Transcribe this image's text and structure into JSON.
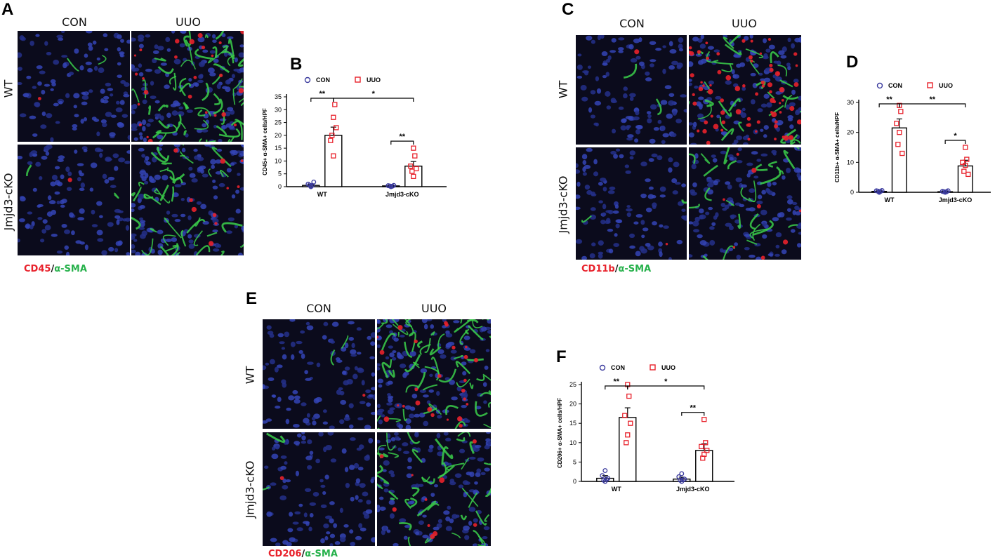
{
  "panels": {
    "A": {
      "label": "A",
      "columns": [
        "CON",
        "UUO"
      ],
      "rows": [
        "WT",
        "Jmjd3-cKO"
      ],
      "stain": {
        "red": "CD45",
        "sep": "/",
        "green": "α-SMA"
      }
    },
    "C": {
      "label": "C",
      "columns": [
        "CON",
        "UUO"
      ],
      "rows": [
        "WT",
        "Jmjd3-cKO"
      ],
      "stain": {
        "red": "CD11b",
        "sep": "/",
        "green": "α-SMA"
      }
    },
    "E": {
      "label": "E",
      "columns": [
        "CON",
        "UUO"
      ],
      "rows": [
        "WT",
        "Jmjd3-cKO"
      ],
      "stain": {
        "red": "CD206",
        "sep": "/",
        "green": "α-SMA"
      }
    },
    "B": {
      "label": "B"
    },
    "D": {
      "label": "D"
    },
    "F": {
      "label": "F"
    }
  },
  "colors": {
    "con": "#3b3b9e",
    "uuo": "#e8212b",
    "nuclei": "#2e3fa8",
    "actin": "#3bcf4a",
    "infiltrate": "#e8212b"
  },
  "chart_data": [
    {
      "panel": "B",
      "type": "bar",
      "categories": [
        "WT",
        "Jmjd3-cKO"
      ],
      "ylabel": "CD45+ α-SMA+ cells/HPF",
      "ylim": [
        0,
        35
      ],
      "yticks": [
        0,
        5,
        10,
        15,
        20,
        25,
        30,
        35
      ],
      "legend": [
        "CON",
        "UUO"
      ],
      "series": [
        {
          "name": "CON",
          "means": [
            0.5,
            0.3
          ],
          "sem": [
            0.4,
            0.2
          ],
          "points": [
            [
              0,
              0.5,
              1,
              0.3,
              0.6,
              1.8
            ],
            [
              0,
              0.2,
              0.4,
              0.1,
              0.3,
              0.5
            ]
          ]
        },
        {
          "name": "UUO",
          "means": [
            20,
            8
          ],
          "sem": [
            3.2,
            1.8
          ],
          "points": [
            [
              27,
              32,
              18,
              12,
              20,
              23
            ],
            [
              15,
              12,
              8,
              4,
              6,
              7
            ]
          ]
        }
      ],
      "significance": [
        {
          "between": "CON-UUO",
          "group": "WT",
          "mark": "**"
        },
        {
          "between": "WT-Jmjd3-cKO",
          "group": "UUO",
          "mark": "*"
        },
        {
          "between": "CON-UUO",
          "group": "Jmjd3-cKO",
          "mark": "**"
        }
      ]
    },
    {
      "panel": "D",
      "type": "bar",
      "categories": [
        "WT",
        "Jmjd3-cKO"
      ],
      "ylabel": "CD11b+ α-SMA+ cells/HPF",
      "ylim": [
        0,
        30
      ],
      "yticks": [
        0,
        10,
        20,
        30
      ],
      "legend": [
        "CON",
        "UUO"
      ],
      "series": [
        {
          "name": "CON",
          "means": [
            0.3,
            0.2
          ],
          "sem": [
            0.2,
            0.2
          ],
          "points": [
            [
              0,
              0.3,
              0.5,
              0.2,
              0.4,
              0.6
            ],
            [
              0,
              0.2,
              0.3,
              0.1,
              0.2,
              0.5
            ]
          ]
        },
        {
          "name": "UUO",
          "means": [
            21.5,
            8.8
          ],
          "sem": [
            3.0,
            1.9
          ],
          "points": [
            [
              29,
              27,
              23,
              20,
              16,
              13
            ],
            [
              15,
              11,
              10,
              9,
              7,
              6
            ]
          ]
        }
      ],
      "significance": [
        {
          "between": "CON-UUO",
          "group": "WT",
          "mark": "**"
        },
        {
          "between": "WT-Jmjd3-cKO",
          "group": "UUO",
          "mark": "**"
        },
        {
          "between": "CON-UUO",
          "group": "Jmjd3-cKO",
          "mark": "*"
        }
      ]
    },
    {
      "panel": "F",
      "type": "bar",
      "categories": [
        "WT",
        "Jmjd3-cKO"
      ],
      "ylabel": "CD206+ α-SMA+ cells/HPF",
      "ylim": [
        0,
        25
      ],
      "yticks": [
        0,
        5,
        10,
        15,
        20,
        25
      ],
      "legend": [
        "CON",
        "UUO"
      ],
      "series": [
        {
          "name": "CON",
          "means": [
            0.8,
            0.6
          ],
          "sem": [
            0.7,
            0.5
          ],
          "points": [
            [
              0,
              0.5,
              1.5,
              2.8,
              0.3,
              0.8
            ],
            [
              0,
              0.4,
              1.2,
              2.0,
              0.3,
              0.6
            ]
          ]
        },
        {
          "name": "UUO",
          "means": [
            16.5,
            8
          ],
          "sem": [
            2.5,
            1.7
          ],
          "points": [
            [
              25,
              22,
              17,
              12,
              10,
              15
            ],
            [
              16,
              10,
              9,
              7,
              6,
              8
            ]
          ]
        }
      ],
      "significance": [
        {
          "between": "CON-UUO",
          "group": "WT",
          "mark": "**"
        },
        {
          "between": "WT-Jmjd3-cKO",
          "group": "UUO",
          "mark": "*"
        },
        {
          "between": "CON-UUO",
          "group": "Jmjd3-cKO",
          "mark": "**"
        }
      ]
    }
  ]
}
